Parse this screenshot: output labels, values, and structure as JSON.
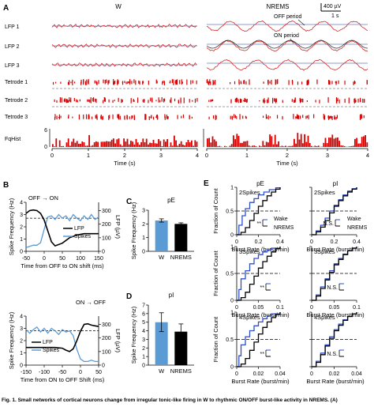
{
  "colors": {
    "lfp": "#d62728",
    "lfp_ref": "#1f3f9f",
    "spike": "#d60000",
    "wake_blue": "#2f4fc8",
    "nrems_black": "#000000",
    "bar_w": "#5b9bd5",
    "bar_nrems": "#000000",
    "dashed": "#444444"
  },
  "panel_a": {
    "label": "A",
    "cond_w": "W",
    "cond_nrems": "NREMS",
    "scale_amp": "400 µV",
    "scale_time": "1 s",
    "off_period": "OFF period",
    "on_period": "ON period",
    "rows": [
      "LFP 1",
      "LFP 2",
      "LFP 3",
      "Tetrode 1",
      "Tetrode 2",
      "Tetrode 3",
      "FqHist"
    ],
    "fq_y_ticks": [
      "6",
      "0"
    ],
    "x_ticks": [
      "0",
      "1",
      "2",
      "3",
      "4"
    ],
    "x_label": "Time (s)"
  },
  "panel_b": {
    "label": "B",
    "top": {
      "annotation": "OFF → ON",
      "y_left_label": "Spike Frequency (Hz)",
      "y_right_label": "LFP (µV)",
      "y_left_ticks": [
        "4",
        "3",
        "2",
        "1",
        "0"
      ],
      "y_right_ticks": [
        "300",
        "200",
        "100",
        "0"
      ],
      "x_ticks": [
        "-50",
        "0",
        "50",
        "100",
        "150"
      ],
      "x_label": "Time from OFF to ON shift (ms)",
      "legend": [
        "LFP",
        "Spikes"
      ]
    },
    "bottom": {
      "annotation": "ON → OFF",
      "y_left_label": "Spike Frequency (Hz)",
      "y_right_label": "LFP (µV)",
      "y_left_ticks": [
        "4",
        "3",
        "2",
        "1",
        "0"
      ],
      "y_right_ticks": [
        "300",
        "200",
        "100",
        "0"
      ],
      "x_ticks": [
        "-150",
        "-100",
        "-50",
        "0",
        "50"
      ],
      "x_label": "Time from ON to OFF Shift (ms)",
      "legend": [
        "LFP",
        "Spikes"
      ]
    }
  },
  "panel_c": {
    "label": "C",
    "title": "pE",
    "y_label": "Spike Frequency (Hz)",
    "y_ticks": [
      "3",
      "2",
      "1",
      "0"
    ],
    "categories": [
      "W",
      "NREMS"
    ]
  },
  "panel_d": {
    "label": "D",
    "title": "pI",
    "y_label": "Spike Frequency (Hz)",
    "y_ticks": [
      "7",
      "6",
      "5",
      "4",
      "3",
      "2",
      "1",
      "0"
    ],
    "categories": [
      "W",
      "NREMS"
    ]
  },
  "panel_e": {
    "label": "E",
    "col_titles": [
      "pE",
      "pI"
    ],
    "y_label": "Fraction of Count",
    "x_label": "Burst Rate (burst/min)",
    "y_ticks": [
      "1",
      "0.5",
      "0"
    ],
    "rows": [
      {
        "name": "2Spikes",
        "x_ticks_pe": [
          "0",
          "0.2",
          "0.4"
        ],
        "x_ticks_pi": [
          "0",
          "0.2",
          "0.4"
        ],
        "stat_pe": "**",
        "stat_pi": "N.S."
      },
      {
        "name": "3Spikes",
        "x_ticks_pe": [
          "0",
          "0.05",
          "0.1"
        ],
        "x_ticks_pi": [
          "0",
          "0.05",
          "0.1"
        ],
        "stat_pe": "**",
        "stat_pi": "N.S."
      },
      {
        "name": "4Spikes",
        "x_ticks_pe": [
          "0",
          "0.02",
          "0.04"
        ],
        "x_ticks_pi": [
          "0",
          "0.02",
          "0.04"
        ],
        "stat_pe": "**",
        "stat_pi": "N.S."
      }
    ],
    "legend": [
      "Wake",
      "NREMS"
    ]
  },
  "caption": "Fig. 1. Small networks of cortical neurons change from irregular tonic-like firing in W to rhythmic ON/OFF burst-like activity in NREMS. (A)",
  "chart_data": [
    {
      "type": "line",
      "panel": "B-top",
      "xlabel": "Time from OFF to ON shift (ms)",
      "ylabel": "Spike Frequency (Hz)",
      "xlim": [
        -50,
        150
      ],
      "ylim": [
        0,
        4
      ],
      "series": [
        {
          "name": "LFP",
          "axis": "right",
          "x": [
            -50,
            -40,
            -30,
            -20,
            -10,
            0,
            10,
            20,
            30,
            50,
            70,
            90,
            110,
            130,
            150
          ],
          "y": [
            280,
            300,
            305,
            300,
            280,
            230,
            150,
            70,
            40,
            60,
            100,
            120,
            130,
            130,
            130
          ]
        },
        {
          "name": "Spikes",
          "axis": "left",
          "x": [
            -50,
            -40,
            -30,
            -20,
            -10,
            0,
            10,
            20,
            30,
            40,
            50,
            60,
            70,
            80,
            90,
            100,
            110,
            120,
            130,
            140,
            150
          ],
          "y": [
            0.3,
            0.4,
            0.5,
            0.5,
            0.7,
            1.8,
            2.8,
            2.9,
            2.6,
            3.0,
            2.7,
            2.9,
            2.5,
            3.0,
            2.7,
            2.5,
            2.9,
            2.6,
            3.0,
            2.6,
            2.8
          ]
        }
      ],
      "reference_line_y": 2.7
    },
    {
      "type": "line",
      "panel": "B-bottom",
      "xlabel": "Time from ON to OFF Shift (ms)",
      "ylabel": "Spike Frequency (Hz)",
      "xlim": [
        -150,
        50
      ],
      "ylim": [
        0,
        4
      ],
      "series": [
        {
          "name": "LFP",
          "axis": "right",
          "x": [
            -150,
            -130,
            -110,
            -90,
            -70,
            -50,
            -40,
            -30,
            -20,
            -10,
            0,
            10,
            20,
            30,
            40,
            50
          ],
          "y": [
            130,
            130,
            130,
            130,
            130,
            125,
            110,
            100,
            120,
            180,
            250,
            300,
            305,
            295,
            290,
            285
          ]
        },
        {
          "name": "Spikes",
          "axis": "left",
          "x": [
            -150,
            -140,
            -130,
            -120,
            -110,
            -100,
            -90,
            -80,
            -70,
            -60,
            -50,
            -40,
            -30,
            -20,
            -10,
            0,
            10,
            20,
            30,
            40,
            50
          ],
          "y": [
            2.9,
            2.6,
            2.9,
            3.1,
            2.7,
            3.0,
            2.6,
            3.0,
            2.8,
            2.5,
            2.9,
            2.7,
            2.8,
            2.4,
            1.3,
            0.5,
            0.3,
            0.3,
            0.4,
            0.3,
            0.3
          ]
        }
      ],
      "reference_line_y": 2.8
    },
    {
      "type": "bar",
      "panel": "C",
      "title": "pE",
      "ylabel": "Spike Frequency (Hz)",
      "categories": [
        "W",
        "NREMS"
      ],
      "values": [
        2.25,
        2.0
      ],
      "errors": [
        0.12,
        0.08
      ],
      "ylim": [
        0,
        3
      ]
    },
    {
      "type": "bar",
      "panel": "D",
      "title": "pI",
      "ylabel": "Spike Frequency (Hz)",
      "categories": [
        "W",
        "NREMS"
      ],
      "values": [
        5.0,
        3.9
      ],
      "errors": [
        1.1,
        0.9
      ],
      "ylim": [
        0,
        7
      ]
    },
    {
      "type": "line",
      "panel": "E",
      "ylabel": "Fraction of Count",
      "xlabel": "Burst Rate (burst/min)",
      "subplots": [
        {
          "col": "pE",
          "row": "2Spikes",
          "xlim": [
            0,
            0.4
          ],
          "series": [
            {
              "name": "Wake",
              "x": [
                0,
                0.02,
                0.05,
                0.08,
                0.12,
                0.16,
                0.2,
                0.25,
                0.3,
                0.36,
                0.4
              ],
              "y": [
                0,
                0.2,
                0.4,
                0.55,
                0.68,
                0.76,
                0.84,
                0.9,
                0.95,
                0.99,
                1
              ]
            },
            {
              "name": "NREMS",
              "x": [
                0,
                0.04,
                0.08,
                0.12,
                0.16,
                0.2,
                0.24,
                0.28,
                0.32,
                0.36,
                0.4
              ],
              "y": [
                0,
                0.05,
                0.15,
                0.3,
                0.45,
                0.6,
                0.72,
                0.82,
                0.9,
                0.96,
                1
              ]
            }
          ]
        },
        {
          "col": "pI",
          "row": "2Spikes",
          "xlim": [
            0,
            0.4
          ],
          "series": [
            {
              "name": "Wake",
              "x": [
                0,
                0.04,
                0.08,
                0.12,
                0.16,
                0.2,
                0.24,
                0.28,
                0.32,
                0.36,
                0.4
              ],
              "y": [
                0,
                0.08,
                0.2,
                0.35,
                0.5,
                0.62,
                0.74,
                0.84,
                0.92,
                0.97,
                1
              ]
            },
            {
              "name": "NREMS",
              "x": [
                0,
                0.04,
                0.08,
                0.12,
                0.16,
                0.2,
                0.24,
                0.28,
                0.32,
                0.36,
                0.4
              ],
              "y": [
                0,
                0.06,
                0.16,
                0.3,
                0.46,
                0.6,
                0.72,
                0.82,
                0.9,
                0.96,
                1
              ]
            }
          ]
        },
        {
          "col": "pE",
          "row": "3Spikes",
          "xlim": [
            0,
            0.1
          ],
          "series": [
            {
              "name": "Wake",
              "x": [
                0,
                0.005,
                0.01,
                0.02,
                0.03,
                0.04,
                0.05,
                0.06,
                0.07,
                0.08,
                0.1
              ],
              "y": [
                0,
                0.2,
                0.4,
                0.55,
                0.68,
                0.78,
                0.85,
                0.9,
                0.94,
                0.97,
                1
              ]
            },
            {
              "name": "NREMS",
              "x": [
                0,
                0.01,
                0.02,
                0.03,
                0.04,
                0.05,
                0.06,
                0.07,
                0.08,
                0.09,
                0.1
              ],
              "y": [
                0,
                0.05,
                0.15,
                0.3,
                0.45,
                0.6,
                0.72,
                0.82,
                0.9,
                0.96,
                1
              ]
            }
          ]
        },
        {
          "col": "pI",
          "row": "3Spikes",
          "xlim": [
            0,
            0.1
          ],
          "series": [
            {
              "name": "Wake",
              "x": [
                0,
                0.01,
                0.02,
                0.03,
                0.04,
                0.05,
                0.06,
                0.07,
                0.08,
                0.09,
                0.1
              ],
              "y": [
                0,
                0.1,
                0.25,
                0.4,
                0.55,
                0.68,
                0.78,
                0.86,
                0.92,
                0.97,
                1
              ]
            },
            {
              "name": "NREMS",
              "x": [
                0,
                0.01,
                0.02,
                0.03,
                0.04,
                0.05,
                0.06,
                0.07,
                0.08,
                0.09,
                0.1
              ],
              "y": [
                0,
                0.08,
                0.22,
                0.38,
                0.52,
                0.66,
                0.76,
                0.85,
                0.92,
                0.97,
                1
              ]
            }
          ]
        },
        {
          "col": "pE",
          "row": "4Spikes",
          "xlim": [
            0,
            0.04
          ],
          "series": [
            {
              "name": "Wake",
              "x": [
                0,
                0.002,
                0.004,
                0.008,
                0.012,
                0.016,
                0.02,
                0.024,
                0.028,
                0.032,
                0.04
              ],
              "y": [
                0,
                0.2,
                0.4,
                0.55,
                0.66,
                0.75,
                0.82,
                0.88,
                0.93,
                0.97,
                1
              ]
            },
            {
              "name": "NREMS",
              "x": [
                0,
                0.004,
                0.008,
                0.012,
                0.016,
                0.02,
                0.024,
                0.028,
                0.032,
                0.036,
                0.04
              ],
              "y": [
                0,
                0.05,
                0.15,
                0.3,
                0.45,
                0.6,
                0.72,
                0.82,
                0.9,
                0.96,
                1
              ]
            }
          ]
        },
        {
          "col": "pI",
          "row": "4Spikes",
          "xlim": [
            0,
            0.04
          ],
          "series": [
            {
              "name": "Wake",
              "x": [
                0,
                0.004,
                0.008,
                0.012,
                0.016,
                0.02,
                0.024,
                0.028,
                0.032,
                0.036,
                0.04
              ],
              "y": [
                0,
                0.1,
                0.25,
                0.4,
                0.55,
                0.68,
                0.78,
                0.86,
                0.92,
                0.97,
                1
              ]
            },
            {
              "name": "NREMS",
              "x": [
                0,
                0.004,
                0.008,
                0.012,
                0.016,
                0.02,
                0.024,
                0.028,
                0.032,
                0.036,
                0.04
              ],
              "y": [
                0,
                0.08,
                0.22,
                0.38,
                0.52,
                0.66,
                0.76,
                0.85,
                0.92,
                0.97,
                1
              ]
            }
          ]
        }
      ]
    }
  ]
}
